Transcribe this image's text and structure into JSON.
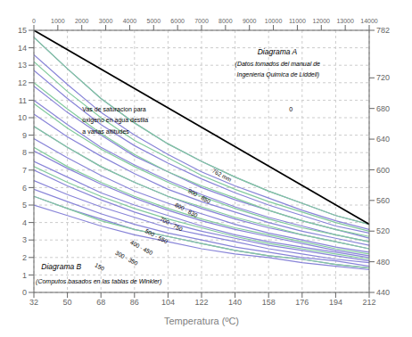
{
  "chart_data": {
    "type": "line",
    "xlabel": "Temperatura (ºC)",
    "xlim": [
      32,
      212
    ],
    "xticks": [
      32,
      50,
      68,
      86,
      104,
      122,
      140,
      158,
      176,
      194,
      212
    ],
    "ylim": [
      0,
      15
    ],
    "yticks": [
      0,
      1,
      2,
      3,
      4,
      5,
      6,
      7,
      8,
      9,
      10,
      11,
      12,
      13,
      14,
      15
    ],
    "y2lim": [
      440,
      782
    ],
    "y2ticks": [
      782,
      720,
      680,
      640,
      600,
      560,
      520,
      480,
      440
    ],
    "x2lim": [
      0,
      14000
    ],
    "x2ticks": [
      0,
      1000,
      2000,
      3000,
      4000,
      5000,
      6000,
      7000,
      8000,
      9000,
      10000,
      11000,
      12000,
      13000,
      14000
    ],
    "grid": true,
    "series": [
      {
        "color": "#8884d8",
        "x": [
          32,
          50,
          68,
          86,
          104,
          122,
          140,
          158,
          176,
          194,
          212
        ],
        "values": [
          14.6,
          12.8,
          11.1,
          9.7,
          8.5,
          7.5,
          6.6,
          5.8,
          5.1,
          4.4,
          3.9
        ]
      },
      {
        "color": "#8884d8",
        "x": [
          32,
          50,
          68,
          86,
          104,
          122,
          140,
          158,
          176,
          194,
          212
        ],
        "values": [
          13.6,
          11.9,
          10.3,
          9.0,
          7.9,
          6.9,
          6.1,
          5.4,
          4.7,
          4.1,
          3.6
        ]
      },
      {
        "color": "#8884d8",
        "x": [
          32,
          50,
          68,
          86,
          104,
          122,
          140,
          158,
          176,
          194,
          212
        ],
        "values": [
          12.7,
          11.1,
          9.6,
          8.4,
          7.4,
          6.5,
          5.7,
          5.0,
          4.4,
          3.8,
          3.4
        ]
      },
      {
        "color": "#8884d8",
        "x": [
          32,
          50,
          68,
          86,
          104,
          122,
          140,
          158,
          176,
          194,
          212
        ],
        "values": [
          11.8,
          10.3,
          9.0,
          7.8,
          6.9,
          6.0,
          5.3,
          4.7,
          4.1,
          3.6,
          3.1
        ]
      },
      {
        "color": "#8884d8",
        "x": [
          32,
          50,
          68,
          86,
          104,
          122,
          140,
          158,
          176,
          194,
          212
        ],
        "values": [
          11.0,
          9.6,
          8.3,
          7.3,
          6.4,
          5.6,
          4.9,
          4.3,
          3.8,
          3.3,
          2.9
        ]
      },
      {
        "color": "#8884d8",
        "x": [
          32,
          50,
          68,
          86,
          104,
          122,
          140,
          158,
          176,
          194,
          212
        ],
        "values": [
          10.2,
          8.9,
          7.8,
          6.8,
          5.9,
          5.2,
          4.6,
          4.0,
          3.5,
          3.1,
          2.7
        ]
      },
      {
        "color": "#8884d8",
        "x": [
          32,
          50,
          68,
          86,
          104,
          122,
          140,
          158,
          176,
          194,
          212
        ],
        "values": [
          9.5,
          8.3,
          7.2,
          6.3,
          5.5,
          4.8,
          4.2,
          3.7,
          3.3,
          2.9,
          2.5
        ]
      },
      {
        "color": "#8884d8",
        "x": [
          32,
          50,
          68,
          86,
          104,
          122,
          140,
          158,
          176,
          194,
          212
        ],
        "values": [
          8.8,
          7.7,
          6.7,
          5.8,
          5.1,
          4.5,
          3.9,
          3.4,
          3.0,
          2.6,
          2.3
        ]
      },
      {
        "color": "#8884d8",
        "x": [
          32,
          50,
          68,
          86,
          104,
          122,
          140,
          158,
          176,
          194,
          212
        ],
        "values": [
          8.1,
          7.1,
          6.2,
          5.4,
          4.7,
          4.1,
          3.6,
          3.2,
          2.8,
          2.4,
          2.1
        ]
      },
      {
        "color": "#8884d8",
        "x": [
          32,
          50,
          68,
          86,
          104,
          122,
          140,
          158,
          176,
          194,
          212
        ],
        "values": [
          7.5,
          6.6,
          5.7,
          5.0,
          4.4,
          3.8,
          3.3,
          2.9,
          2.6,
          2.3,
          2.0
        ]
      },
      {
        "color": "#8884d8",
        "x": [
          32,
          50,
          68,
          86,
          104,
          122,
          140,
          158,
          176,
          194,
          212
        ],
        "values": [
          7.0,
          6.1,
          5.3,
          4.6,
          4.0,
          3.5,
          3.1,
          2.7,
          2.4,
          2.1,
          1.8
        ]
      },
      {
        "color": "#8884d8",
        "x": [
          32,
          50,
          68,
          86,
          104,
          122,
          140,
          158,
          176,
          194,
          212
        ],
        "values": [
          6.4,
          5.6,
          4.9,
          4.3,
          3.7,
          3.3,
          2.9,
          2.5,
          2.2,
          1.9,
          1.7
        ]
      },
      {
        "color": "#8884d8",
        "x": [
          32,
          50,
          68,
          86,
          104,
          122,
          140,
          158,
          176,
          194,
          212
        ],
        "values": [
          5.9,
          5.2,
          4.5,
          3.9,
          3.4,
          3.0,
          2.6,
          2.3,
          2.0,
          1.8,
          1.5
        ]
      },
      {
        "color": "#8884d8",
        "x": [
          32,
          50,
          68,
          86,
          104,
          122,
          140,
          158,
          176,
          194,
          212
        ],
        "values": [
          5.5,
          4.8,
          4.2,
          3.6,
          3.2,
          2.8,
          2.4,
          2.1,
          1.9,
          1.6,
          1.4
        ]
      },
      {
        "color": "#8884d8",
        "x": [
          32,
          50,
          68,
          86,
          104,
          122,
          140,
          158,
          176,
          194,
          212
        ],
        "values": [
          5.0,
          4.4,
          3.8,
          3.3,
          2.9,
          2.5,
          2.2,
          2.0,
          1.7,
          1.5,
          1.3
        ]
      },
      {
        "color": "#82ca9d",
        "x": [
          32,
          50,
          68,
          86,
          104,
          122,
          140,
          158,
          176,
          194,
          212
        ],
        "values": [
          14.6,
          12.8,
          11.1,
          9.7,
          8.5,
          7.5,
          6.6,
          5.8,
          5.1,
          4.4,
          3.9
        ]
      },
      {
        "color": "#82ca9d",
        "x": [
          32,
          50,
          68,
          86,
          104,
          122,
          140,
          158,
          176,
          194,
          212
        ],
        "values": [
          13.2,
          11.5,
          10.0,
          8.7,
          7.7,
          6.7,
          5.9,
          5.2,
          4.6,
          4.0,
          3.5
        ]
      },
      {
        "color": "#82ca9d",
        "x": [
          32,
          50,
          68,
          86,
          104,
          122,
          140,
          158,
          176,
          194,
          212
        ],
        "values": [
          12.0,
          10.5,
          9.1,
          7.9,
          6.9,
          6.1,
          5.4,
          4.7,
          4.1,
          3.6,
          3.2
        ]
      },
      {
        "color": "#82ca9d",
        "x": [
          32,
          50,
          68,
          86,
          104,
          122,
          140,
          158,
          176,
          194,
          212
        ],
        "values": [
          10.8,
          9.4,
          8.2,
          7.2,
          6.3,
          5.5,
          4.8,
          4.2,
          3.7,
          3.3,
          2.9
        ]
      },
      {
        "color": "#82ca9d",
        "x": [
          32,
          50,
          68,
          86,
          104,
          122,
          140,
          158,
          176,
          194,
          212
        ],
        "values": [
          9.5,
          8.3,
          7.2,
          6.3,
          5.5,
          4.9,
          4.3,
          3.8,
          3.3,
          2.9,
          2.5
        ]
      },
      {
        "color": "#82ca9d",
        "x": [
          32,
          50,
          68,
          86,
          104,
          122,
          140,
          158,
          176,
          194,
          212
        ],
        "values": [
          8.3,
          7.2,
          6.3,
          5.5,
          4.8,
          4.2,
          3.7,
          3.3,
          2.9,
          2.5,
          2.2
        ]
      },
      {
        "color": "#82ca9d",
        "x": [
          32,
          50,
          68,
          86,
          104,
          122,
          140,
          158,
          176,
          194,
          212
        ],
        "values": [
          7.2,
          6.3,
          5.5,
          4.8,
          4.2,
          3.7,
          3.2,
          2.8,
          2.5,
          2.2,
          1.9
        ]
      },
      {
        "color": "#82ca9d",
        "x": [
          32,
          50,
          68,
          86,
          104,
          122,
          140,
          158,
          176,
          194,
          212
        ],
        "values": [
          5.5,
          4.8,
          4.1,
          3.6,
          3.2,
          2.8,
          2.4,
          2.1,
          1.9,
          1.6,
          1.4
        ]
      },
      {
        "color": "#000000",
        "x": [
          32,
          212
        ],
        "values": [
          15,
          3.9
        ]
      }
    ],
    "annotations": [
      "0",
      "762 mm",
      "900 - 850",
      "800 - 830",
      "700 - 750",
      "500 - 550",
      "400 - 450",
      "300 - 350",
      "150",
      "Diagrama A",
      "(Datos tomados del manual de",
      " Ingenieria Quimica de Liddell)",
      "Vas de saturacion para",
      "oxigeno en agua destila",
      "a varias altitudes",
      "Diagrama B",
      "(Computos basados en las tablas de Winkler)"
    ]
  }
}
